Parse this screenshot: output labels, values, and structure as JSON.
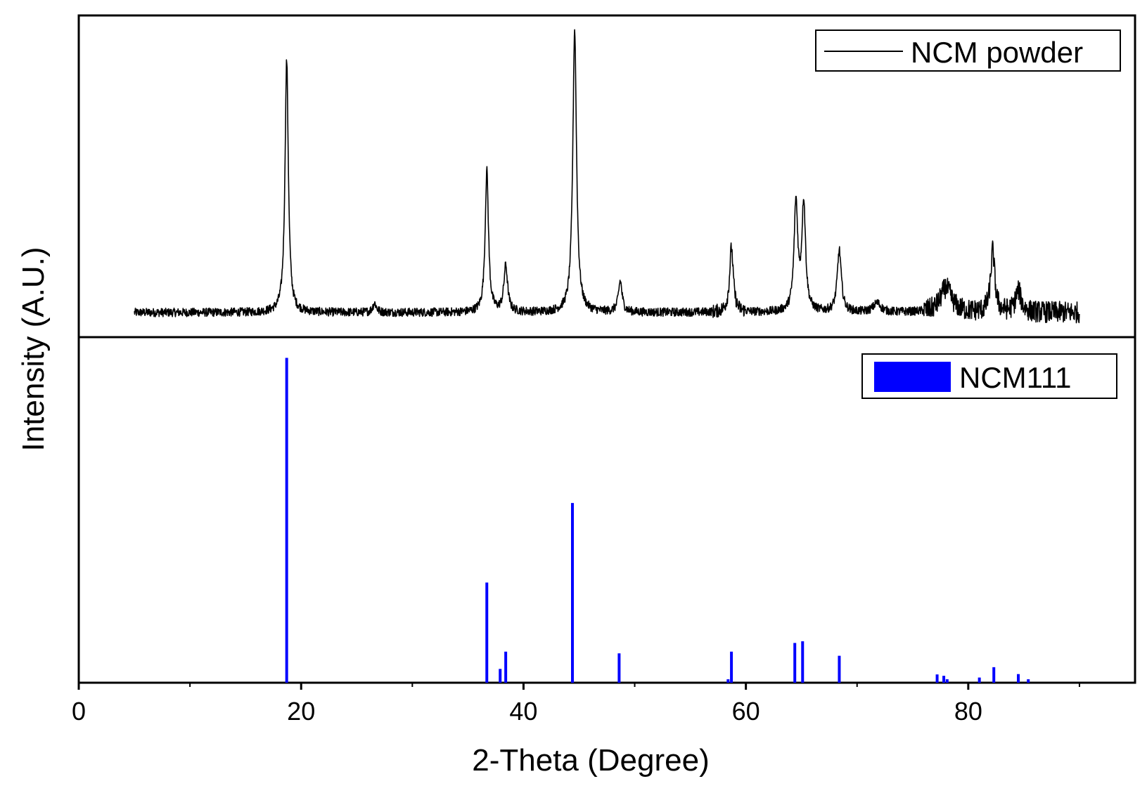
{
  "chart_data": {
    "type": "line",
    "xlabel": "2-Theta (Degree)",
    "ylabel": "Intensity (A.U.)",
    "xlim": [
      0,
      95
    ],
    "x_ticks": [
      0,
      20,
      40,
      60,
      80
    ],
    "x_minor_ticks": [
      10,
      30,
      50,
      70,
      90
    ],
    "grid": false,
    "panels": [
      {
        "id": "top",
        "type": "line",
        "legend": {
          "label": "NCM powder",
          "position": "top-right",
          "color": "#000000"
        },
        "color": "#000000",
        "x_range": [
          5,
          90
        ],
        "ylim": [
          0,
          1.0
        ],
        "baseline": 0.08,
        "noise": 0.014,
        "noise_high": [
          {
            "from": 57,
            "to": 60,
            "amp": 0.022
          },
          {
            "from": 76,
            "to": 90,
            "amp": 0.035
          }
        ],
        "peaks": [
          {
            "x": 18.7,
            "height": 0.82,
            "width": 0.18
          },
          {
            "x": 26.6,
            "height": 0.03,
            "width": 0.2
          },
          {
            "x": 36.7,
            "height": 0.46,
            "width": 0.18
          },
          {
            "x": 38.4,
            "height": 0.15,
            "width": 0.2
          },
          {
            "x": 44.6,
            "height": 0.92,
            "width": 0.2
          },
          {
            "x": 48.7,
            "height": 0.1,
            "width": 0.2
          },
          {
            "x": 58.7,
            "height": 0.21,
            "width": 0.2
          },
          {
            "x": 64.5,
            "height": 0.35,
            "width": 0.2
          },
          {
            "x": 65.2,
            "height": 0.35,
            "width": 0.2
          },
          {
            "x": 68.4,
            "height": 0.2,
            "width": 0.22
          },
          {
            "x": 71.8,
            "height": 0.03,
            "width": 0.4
          },
          {
            "x": 78.0,
            "height": 0.08,
            "width": 0.6
          },
          {
            "x": 82.2,
            "height": 0.2,
            "width": 0.22
          },
          {
            "x": 84.5,
            "height": 0.07,
            "width": 0.3
          }
        ]
      },
      {
        "id": "bottom",
        "type": "bar",
        "legend": {
          "label": "NCM111",
          "position": "top-right",
          "color": "#0000ff"
        },
        "color": "#0000ff",
        "ylim": [
          0,
          1.0
        ],
        "lines": [
          {
            "x": 18.7,
            "intensity": 0.94
          },
          {
            "x": 36.7,
            "intensity": 0.29
          },
          {
            "x": 37.9,
            "intensity": 0.04
          },
          {
            "x": 38.4,
            "intensity": 0.09
          },
          {
            "x": 44.4,
            "intensity": 0.52
          },
          {
            "x": 48.6,
            "intensity": 0.085
          },
          {
            "x": 58.4,
            "intensity": 0.01
          },
          {
            "x": 58.7,
            "intensity": 0.09
          },
          {
            "x": 64.4,
            "intensity": 0.115
          },
          {
            "x": 65.1,
            "intensity": 0.12
          },
          {
            "x": 68.4,
            "intensity": 0.078
          },
          {
            "x": 77.2,
            "intensity": 0.024
          },
          {
            "x": 77.8,
            "intensity": 0.02
          },
          {
            "x": 78.1,
            "intensity": 0.01
          },
          {
            "x": 81.0,
            "intensity": 0.015
          },
          {
            "x": 82.3,
            "intensity": 0.045
          },
          {
            "x": 84.5,
            "intensity": 0.025
          },
          {
            "x": 85.4,
            "intensity": 0.01
          }
        ]
      }
    ]
  }
}
